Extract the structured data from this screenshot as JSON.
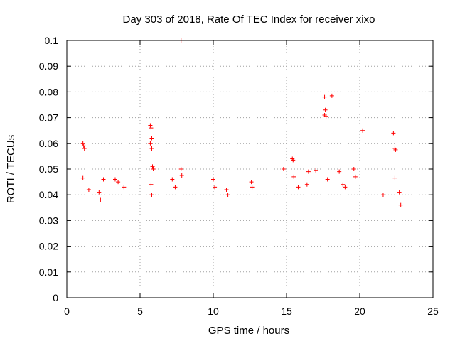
{
  "chart_data": {
    "type": "scatter",
    "title": "Day 303 of 2018, Rate Of TEC Index for receiver xixo",
    "xlabel": "GPS time / hours",
    "ylabel": "ROTI / TECUs",
    "xlim": [
      0,
      25
    ],
    "ylim": [
      0,
      0.1
    ],
    "x_ticks": [
      0,
      5,
      10,
      15,
      20,
      25
    ],
    "y_ticks": [
      0,
      0.01,
      0.02,
      0.03,
      0.04,
      0.05,
      0.06,
      0.07,
      0.08,
      0.09,
      0.1
    ],
    "x_tick_labels": [
      "0",
      "5",
      "10",
      "15",
      "20",
      "25"
    ],
    "y_tick_labels": [
      "0",
      "0.01",
      "0.02",
      "0.03",
      "0.04",
      "0.05",
      "0.06",
      "0.07",
      "0.08",
      "0.09",
      "0.1"
    ],
    "grid": true,
    "marker": "+",
    "marker_color": "#ff0000",
    "series": [
      {
        "points": [
          [
            1.1,
            0.06
          ],
          [
            1.15,
            0.059
          ],
          [
            1.2,
            0.058
          ],
          [
            1.1,
            0.0465
          ],
          [
            1.5,
            0.042
          ],
          [
            2.2,
            0.041
          ],
          [
            2.3,
            0.038
          ],
          [
            2.5,
            0.046
          ],
          [
            3.3,
            0.046
          ],
          [
            3.5,
            0.045
          ],
          [
            3.9,
            0.043
          ],
          [
            5.7,
            0.067
          ],
          [
            5.75,
            0.066
          ],
          [
            5.8,
            0.062
          ],
          [
            5.7,
            0.06
          ],
          [
            5.8,
            0.058
          ],
          [
            5.85,
            0.051
          ],
          [
            5.9,
            0.05
          ],
          [
            5.75,
            0.044
          ],
          [
            5.8,
            0.04
          ],
          [
            7.2,
            0.046
          ],
          [
            7.4,
            0.043
          ],
          [
            7.8,
            0.05
          ],
          [
            7.85,
            0.0475
          ],
          [
            7.8,
            0.1
          ],
          [
            10.0,
            0.046
          ],
          [
            10.1,
            0.043
          ],
          [
            10.9,
            0.042
          ],
          [
            11.0,
            0.04
          ],
          [
            12.6,
            0.045
          ],
          [
            12.65,
            0.043
          ],
          [
            14.8,
            0.05
          ],
          [
            15.4,
            0.054
          ],
          [
            15.45,
            0.0535
          ],
          [
            15.5,
            0.047
          ],
          [
            15.8,
            0.043
          ],
          [
            16.4,
            0.044
          ],
          [
            16.5,
            0.049
          ],
          [
            17.0,
            0.0495
          ],
          [
            17.6,
            0.078
          ],
          [
            17.65,
            0.073
          ],
          [
            17.6,
            0.071
          ],
          [
            17.7,
            0.0705
          ],
          [
            18.1,
            0.0785
          ],
          [
            17.8,
            0.046
          ],
          [
            18.6,
            0.049
          ],
          [
            18.85,
            0.044
          ],
          [
            19.0,
            0.043
          ],
          [
            19.6,
            0.05
          ],
          [
            19.7,
            0.047
          ],
          [
            20.2,
            0.065
          ],
          [
            21.6,
            0.04
          ],
          [
            22.3,
            0.064
          ],
          [
            22.4,
            0.058
          ],
          [
            22.45,
            0.0575
          ],
          [
            22.4,
            0.0465
          ],
          [
            22.7,
            0.041
          ],
          [
            22.8,
            0.036
          ]
        ]
      }
    ]
  }
}
